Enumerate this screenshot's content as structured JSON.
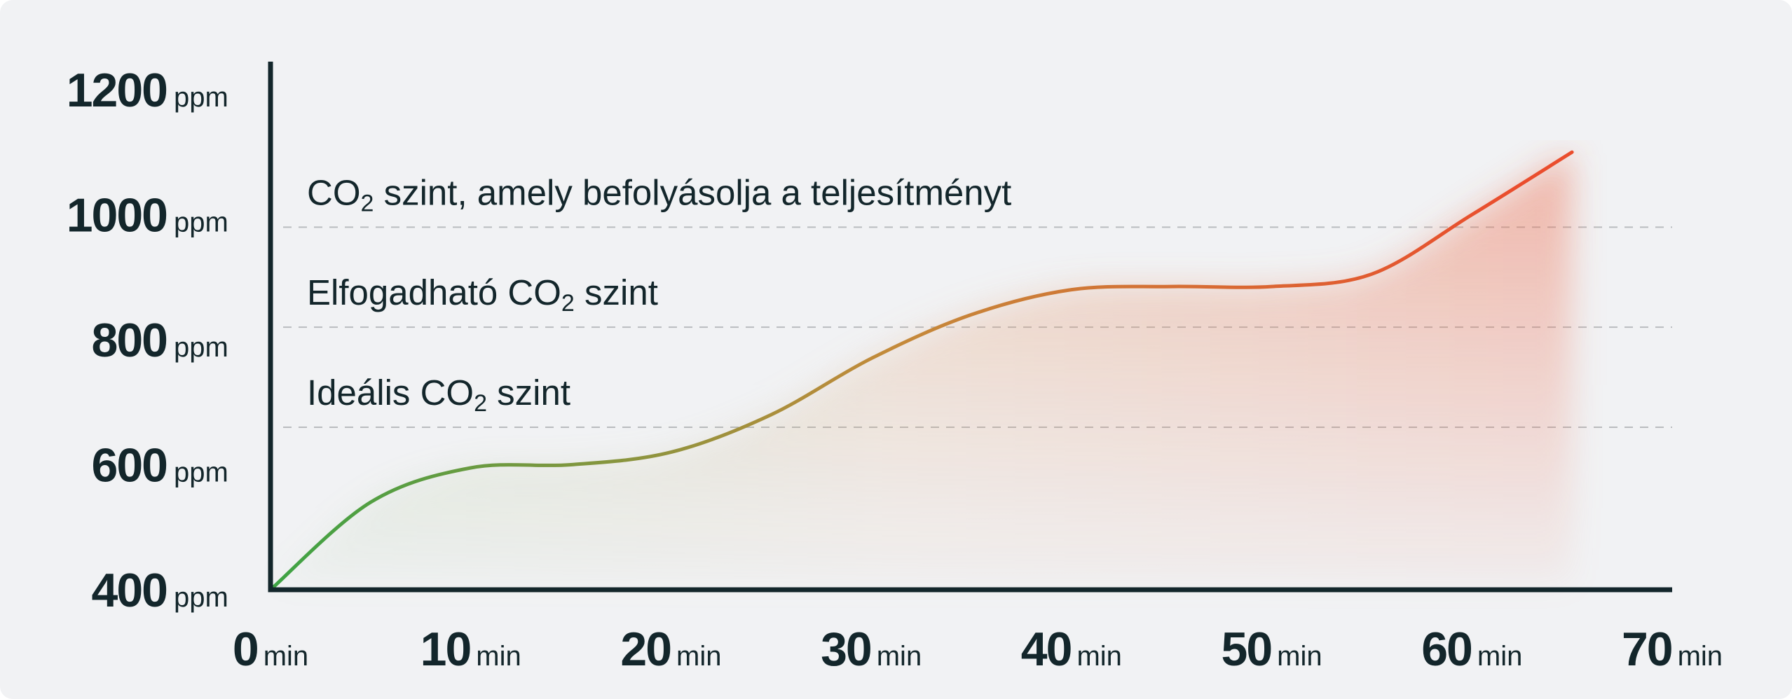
{
  "colors": {
    "background": "#f1f2f4",
    "axis": "#13262b",
    "text": "#13262b",
    "threshold_line": "#b9bcbf",
    "curve_start": "#3da344",
    "curve_mid": "#c48a3a",
    "curve_end": "#ea4d2d"
  },
  "chart_data": {
    "type": "area",
    "title": "",
    "xlabel": "",
    "ylabel": "",
    "grid": false,
    "legend": "none",
    "x_unit": "min",
    "y_unit": "ppm",
    "xlim": [
      0,
      70
    ],
    "ylim": [
      400,
      1200
    ],
    "x_ticks": [
      "0",
      "10",
      "20",
      "30",
      "40",
      "50",
      "60",
      "70"
    ],
    "y_ticks": [
      "400",
      "600",
      "800",
      "1000",
      "1200"
    ],
    "series": [
      {
        "x": [
          0,
          5,
          10,
          15,
          20,
          25,
          30,
          35,
          40,
          45,
          50,
          55,
          60,
          65
        ],
        "values": [
          400,
          540,
          595,
          600,
          620,
          680,
          770,
          840,
          880,
          885,
          885,
          905,
          1000,
          1100
        ]
      }
    ],
    "thresholds": [
      {
        "value": 980,
        "label_pre": "CO",
        "label_sub": "2",
        "label_post": " szint, amely befolyásolja a teljesítményt"
      },
      {
        "value": 820,
        "label_pre": "Elfogadható CO",
        "label_sub": "2",
        "label_post": " szint"
      },
      {
        "value": 660,
        "label_pre": "Ideális CO",
        "label_sub": "2",
        "label_post": " szint"
      }
    ]
  }
}
